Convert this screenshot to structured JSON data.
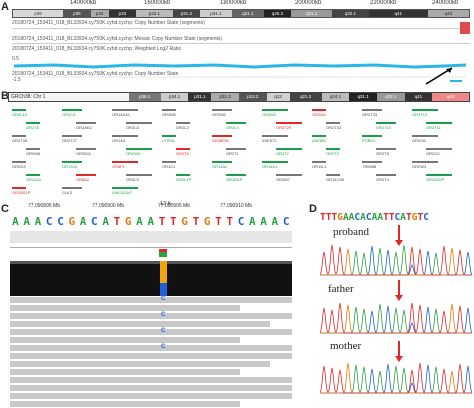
{
  "panels": {
    "a": "A",
    "b": "B",
    "c": "C",
    "d": "D"
  },
  "panelA": {
    "coords": [
      "140000kb",
      "160000kb",
      "180000kb",
      "200000kb",
      "220000kb",
      "240000kb"
    ],
    "bands": [
      "p36",
      "p35",
      "p34",
      "p33",
      "p32.1",
      "p31.3",
      "p31.1",
      "q21.1",
      "q25.3",
      "q31.1",
      "q32.1",
      "q41",
      "q43"
    ],
    "track1": "20180724_153411_018_BL33934.cy750K.cyhd.cychp: Copy Number State (segments)",
    "track2": "20180724_153411_018_BL33934.cy750K.cyhd.cychp: Mosaic Copy Number State (segments)",
    "track3": "20180724_153411_018_BL33934.cy750K.cyhd.cychp: Weighted Log2 Ratio",
    "track4": "20180724_153411_018_BL33934.cy750K.cyhd.cychp: Copy Number State",
    "y_top": "0.5",
    "y_bottom": "-1.5"
  },
  "panelB": {
    "chrom_label": "GRCh38: Chr 1",
    "bands": [
      "p36.1",
      "p34.1",
      "p31.1",
      "p21.3",
      "p13.2",
      "q12",
      "q21.2",
      "q24.1",
      "q31.1",
      "q32.1",
      "q41",
      "q43"
    ],
    "genes": [
      "OR2L13",
      "OR2C3",
      "OR14A16",
      "OR2M5",
      "OR2M2",
      "OR2M3",
      "OR2M4",
      "OR2T33",
      "OR2T12",
      "OR2T8",
      "OR2AK2",
      "OR2L8",
      "OR2L2",
      "OR2L3",
      "OR2T29",
      "OR2T34",
      "OR2T10",
      "OR2T11",
      "OR2T35",
      "OR2T27",
      "OR14I1",
      "LYPD8",
      "SH3BP5L",
      "ZNF672",
      "ZNF692",
      "PGBD2",
      "OR2G6",
      "OR2W5",
      "OR2B11",
      "OR2W3",
      "OR2T6",
      "OR2T1",
      "OR2T2",
      "OR2T3",
      "OR2T5",
      "OR2G2",
      "OR2G3",
      "OR13G1",
      "OR6F1",
      "OR1C1",
      "OR14A2",
      "OR14K1",
      "OR11L1",
      "TRIM58",
      "OR2W3",
      "OR2AJ1",
      "OR6B2",
      "OR2L5",
      "OR2L1P",
      "OR2M1P",
      "OR2M7",
      "OR14C36",
      "OR2T4",
      "OR2AS2P",
      "OR2AS1P",
      "CLK3",
      "LINC01347"
    ]
  },
  "panelC": {
    "position_labels": [
      "77.090895 Mb",
      "77.090900 Mb",
      "77.090905 Mb",
      "77.090910 Mb"
    ],
    "bp_label": "13 b",
    "sequence": "AAACCGACATGAATTGTGTTCAAAC",
    "var_letter": "C"
  },
  "panelD": {
    "sequence": "TTTGAACACAATTCATGTC",
    "labels": [
      "proband",
      "father",
      "mother"
    ]
  },
  "colors": {
    "A": "#2ea043",
    "C": "#2060d8",
    "G": "#e07b10",
    "T": "#e02828",
    "cnv_cyan": "#29b8e6",
    "red": "#e0282a"
  }
}
